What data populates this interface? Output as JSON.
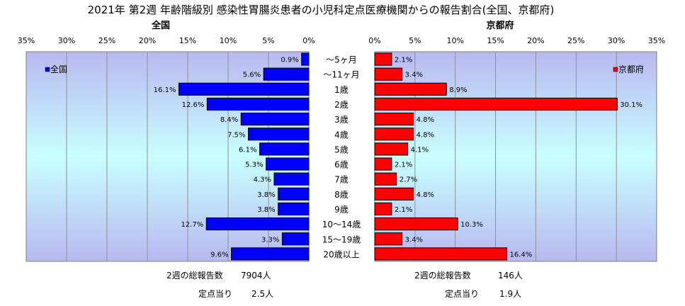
{
  "title": "2021年 第2週 年齢階級別 感染性胃腸炎患者の小児科定点医療機関からの報告割合(全国、京都府)",
  "chart_data": {
    "type": "bar",
    "title": "2021年 第2週 年齢階級別 感染性胃腸炎患者の小児科定点医療機関からの報告割合(全国、京都府)",
    "categories": [
      "～5ヶ月",
      "～11ヶ月",
      "1歳",
      "2歳",
      "3歳",
      "4歳",
      "5歳",
      "6歳",
      "7歳",
      "8歳",
      "9歳",
      "10～14歳",
      "15～19歳",
      "20歳以上"
    ],
    "xlim": [
      0,
      35
    ],
    "tick_values": [
      0,
      5,
      10,
      15,
      20,
      25,
      30,
      35
    ],
    "tick_labels": [
      "0%",
      "5%",
      "10%",
      "15%",
      "20%",
      "25%",
      "30%",
      "35%"
    ],
    "grid": true,
    "panels": [
      {
        "name": "全国",
        "direction": "left",
        "legend": "全国",
        "legend_position": "top-left",
        "color": "#0000FF",
        "values": [
          0.9,
          5.6,
          16.1,
          12.6,
          8.4,
          7.5,
          6.1,
          5.3,
          4.3,
          3.8,
          3.8,
          12.7,
          3.3,
          9.6
        ],
        "value_labels": [
          "0.9%",
          "5.6%",
          "16.1%",
          "12.6%",
          "8.4%",
          "7.5%",
          "6.1%",
          "5.3%",
          "4.3%",
          "3.8%",
          "3.8%",
          "12.7%",
          "3.3%",
          "9.6%"
        ]
      },
      {
        "name": "京都府",
        "direction": "right",
        "legend": "京都府",
        "legend_position": "top-right",
        "color": "#FF0000",
        "values": [
          2.1,
          3.4,
          8.9,
          30.1,
          4.8,
          4.8,
          4.1,
          2.1,
          2.7,
          4.8,
          2.1,
          10.3,
          3.4,
          16.4
        ],
        "value_labels": [
          "2.1%",
          "3.4%",
          "8.9%",
          "30.1%",
          "4.8%",
          "4.8%",
          "4.1%",
          "2.1%",
          "2.7%",
          "4.8%",
          "2.1%",
          "10.3%",
          "3.4%",
          "16.4%"
        ]
      }
    ]
  },
  "footer": {
    "national": {
      "total_label": "2週の総報告数",
      "total_value": "7904人",
      "per_site_label": "定点当り",
      "per_site_value": "2.5人"
    },
    "kyoto": {
      "total_label": "2週の総報告数",
      "total_value": "146人",
      "per_site_label": "定点当り",
      "per_site_value": "1.9人"
    }
  },
  "colors": {
    "plot_gradient_light": "#C8FFFF",
    "plot_gradient_dark": "#B8B8F0",
    "national_bar": "#0000FF",
    "kyoto_bar": "#FF0000"
  }
}
